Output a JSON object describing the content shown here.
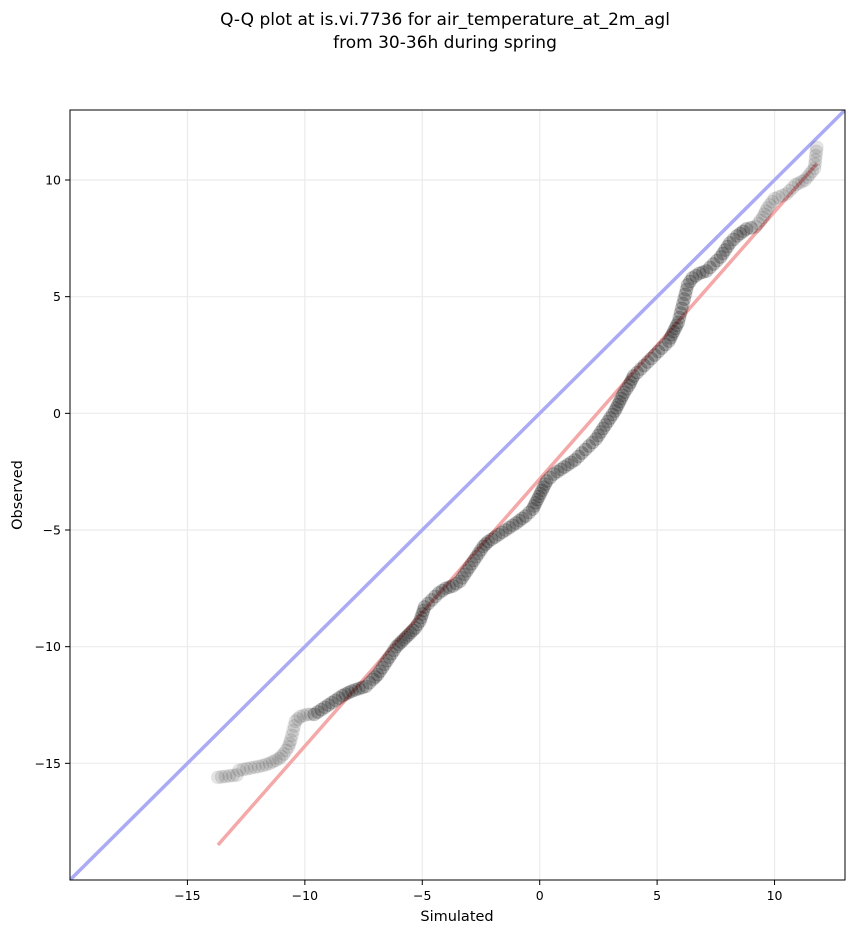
{
  "chart_data": {
    "type": "scatter",
    "title": [
      "Q-Q plot at is.vi.7736 for air_temperature_at_2m_agl",
      "from 30-36h during spring"
    ],
    "xlabel": "Simulated",
    "ylabel": "Observed",
    "xlim": [
      -20,
      13
    ],
    "ylim": [
      -20,
      13
    ],
    "xticks": [
      -15,
      -10,
      -5,
      0,
      5,
      10
    ],
    "yticks": [
      10,
      5,
      0,
      -5,
      -10,
      -15
    ],
    "grid": true,
    "series": [
      {
        "kind": "reference_line",
        "color": "#aaaaf5",
        "points": [
          [
            -20,
            -20
          ],
          [
            13,
            13
          ]
        ]
      },
      {
        "kind": "fit_line",
        "color": "#f5a8a8",
        "points": [
          [
            -13.7,
            -18.5
          ],
          [
            11.8,
            10.7
          ]
        ]
      },
      {
        "kind": "quantiles",
        "color": "#000000",
        "points": [
          [
            -13.7,
            -15.6
          ],
          [
            -12.9,
            -15.5
          ],
          [
            -12.8,
            -15.3
          ],
          [
            -12.3,
            -15.2
          ],
          [
            -11.8,
            -15.1
          ],
          [
            -11.5,
            -15.0
          ],
          [
            -11.1,
            -14.8
          ],
          [
            -10.9,
            -14.6
          ],
          [
            -10.7,
            -14.3
          ],
          [
            -10.6,
            -14.0
          ],
          [
            -10.5,
            -13.6
          ],
          [
            -10.4,
            -13.2
          ],
          [
            -10.2,
            -13.0
          ],
          [
            -9.9,
            -12.9
          ],
          [
            -9.6,
            -12.9
          ],
          [
            -9.3,
            -12.7
          ],
          [
            -9.0,
            -12.5
          ],
          [
            -8.7,
            -12.3
          ],
          [
            -8.4,
            -12.1
          ],
          [
            -8.0,
            -11.9
          ],
          [
            -7.7,
            -11.8
          ],
          [
            -7.4,
            -11.7
          ],
          [
            -7.1,
            -11.4
          ],
          [
            -6.9,
            -11.2
          ],
          [
            -6.7,
            -10.9
          ],
          [
            -6.5,
            -10.6
          ],
          [
            -6.3,
            -10.3
          ],
          [
            -6.1,
            -10.0
          ],
          [
            -5.9,
            -9.8
          ],
          [
            -5.7,
            -9.6
          ],
          [
            -5.5,
            -9.4
          ],
          [
            -5.3,
            -9.2
          ],
          [
            -5.1,
            -8.9
          ],
          [
            -5.0,
            -8.6
          ],
          [
            -4.9,
            -8.3
          ],
          [
            -4.6,
            -8.0
          ],
          [
            -4.3,
            -7.7
          ],
          [
            -4.0,
            -7.5
          ],
          [
            -3.7,
            -7.4
          ],
          [
            -3.4,
            -7.2
          ],
          [
            -3.2,
            -6.9
          ],
          [
            -3.0,
            -6.6
          ],
          [
            -2.8,
            -6.3
          ],
          [
            -2.6,
            -6.0
          ],
          [
            -2.4,
            -5.7
          ],
          [
            -2.2,
            -5.5
          ],
          [
            -1.9,
            -5.3
          ],
          [
            -1.6,
            -5.1
          ],
          [
            -1.3,
            -4.9
          ],
          [
            -1.0,
            -4.7
          ],
          [
            -0.6,
            -4.4
          ],
          [
            -0.3,
            -4.1
          ],
          [
            -0.1,
            -3.7
          ],
          [
            0.1,
            -3.3
          ],
          [
            0.3,
            -2.9
          ],
          [
            0.6,
            -2.6
          ],
          [
            0.9,
            -2.4
          ],
          [
            1.2,
            -2.2
          ],
          [
            1.5,
            -2.0
          ],
          [
            1.8,
            -1.7
          ],
          [
            2.1,
            -1.4
          ],
          [
            2.4,
            -1.1
          ],
          [
            2.6,
            -0.8
          ],
          [
            2.8,
            -0.5
          ],
          [
            3.0,
            -0.2
          ],
          [
            3.2,
            0.1
          ],
          [
            3.4,
            0.5
          ],
          [
            3.6,
            0.9
          ],
          [
            3.8,
            1.2
          ],
          [
            4.0,
            1.6
          ],
          [
            4.3,
            1.9
          ],
          [
            4.6,
            2.2
          ],
          [
            4.9,
            2.5
          ],
          [
            5.2,
            2.8
          ],
          [
            5.5,
            3.1
          ],
          [
            5.7,
            3.5
          ],
          [
            5.9,
            3.9
          ],
          [
            6.0,
            4.3
          ],
          [
            6.1,
            4.7
          ],
          [
            6.2,
            5.1
          ],
          [
            6.3,
            5.5
          ],
          [
            6.5,
            5.8
          ],
          [
            6.8,
            6.0
          ],
          [
            7.1,
            6.1
          ],
          [
            7.4,
            6.4
          ],
          [
            7.7,
            6.7
          ],
          [
            7.9,
            7.0
          ],
          [
            8.1,
            7.3
          ],
          [
            8.4,
            7.6
          ],
          [
            8.8,
            7.9
          ],
          [
            9.2,
            8.0
          ],
          [
            9.5,
            8.4
          ],
          [
            9.7,
            8.8
          ],
          [
            10.0,
            9.2
          ],
          [
            10.5,
            9.4
          ],
          [
            10.9,
            9.8
          ],
          [
            11.3,
            10.0
          ],
          [
            11.7,
            10.5
          ],
          [
            11.8,
            11.4
          ]
        ]
      }
    ]
  }
}
